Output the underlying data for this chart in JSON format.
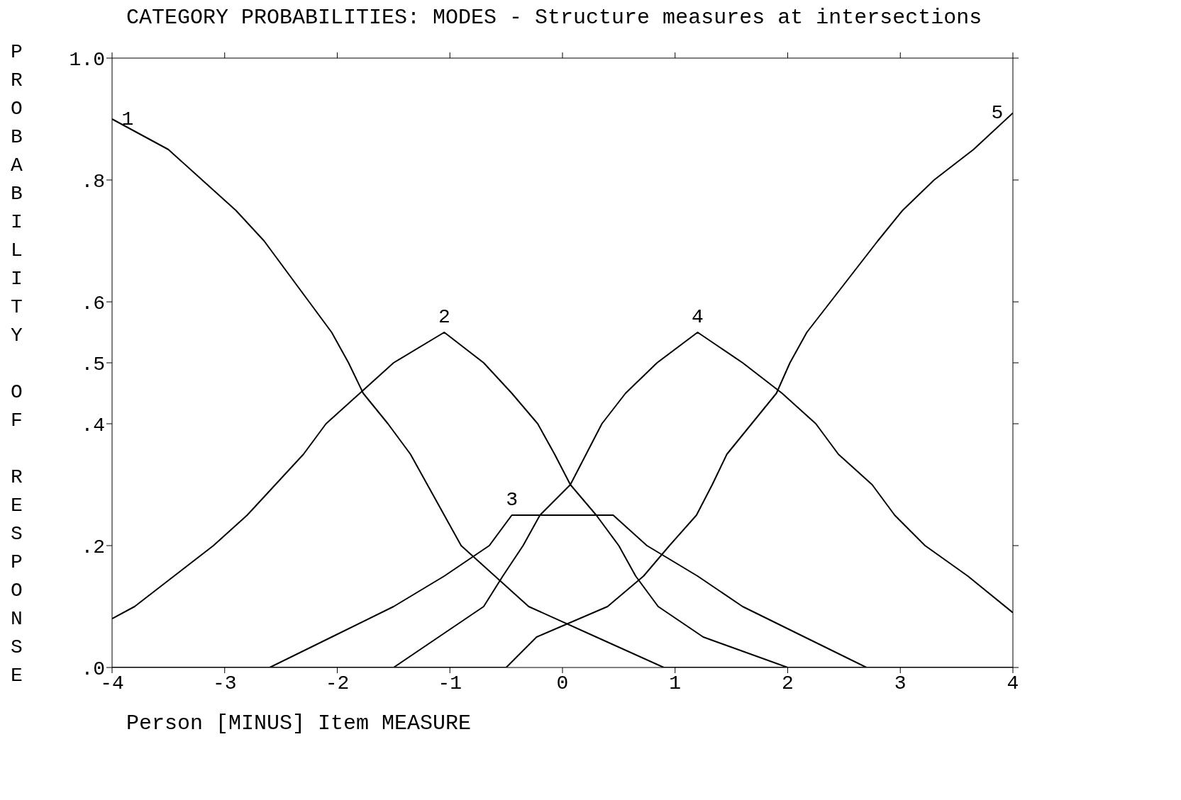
{
  "chart_data": {
    "type": "line",
    "title": "CATEGORY PROBABILITIES: MODES - Structure measures at intersections",
    "xlabel": "Person [MINUS] Item MEASURE",
    "ylabel": "PROBABILITY OF RESPONSE",
    "xlim": [
      -4,
      4
    ],
    "xticks": [
      -4,
      -3,
      -2,
      -1,
      0,
      1,
      2,
      3,
      4
    ],
    "ylim": [
      0,
      1
    ],
    "yticks": [
      {
        "value": 0,
        "label": ".0"
      },
      {
        "value": 0.2,
        "label": ".2"
      },
      {
        "value": 0.4,
        "label": ".4"
      },
      {
        "value": 0.5,
        "label": ".5"
      },
      {
        "value": 0.6,
        "label": ".6"
      },
      {
        "value": 0.8,
        "label": ".8"
      },
      {
        "value": 1,
        "label": "1.0"
      }
    ],
    "grid": false,
    "legend": false,
    "series": [
      {
        "name": "1",
        "color": "#000000",
        "x": [
          -4,
          -3.5,
          -3.2,
          -2.9,
          -2.65,
          -2.45,
          -2.25,
          -2.05,
          -1.9,
          -1.77,
          -1.55,
          -1.35,
          -1.2,
          -1.05,
          -0.9,
          -0.6,
          -0.3,
          0.3,
          0.9,
          4
        ],
        "values": [
          0.9,
          0.85,
          0.8,
          0.75,
          0.7,
          0.65,
          0.6,
          0.55,
          0.5,
          0.45,
          0.4,
          0.35,
          0.3,
          0.25,
          0.2,
          0.15,
          0.1,
          0.05,
          0,
          0
        ]
      },
      {
        "name": "2",
        "color": "#000000",
        "x": [
          -4,
          -3.8,
          -3.45,
          -3.1,
          -2.8,
          -2.55,
          -2.3,
          -2.1,
          -1.8,
          -1.5,
          -1.05,
          -0.7,
          -0.45,
          -0.22,
          -0.07,
          0.07,
          0.3,
          0.5,
          0.65,
          0.85,
          1.25,
          2,
          4
        ],
        "values": [
          0.08,
          0.1,
          0.15,
          0.2,
          0.25,
          0.3,
          0.35,
          0.4,
          0.45,
          0.5,
          0.55,
          0.5,
          0.45,
          0.4,
          0.35,
          0.3,
          0.25,
          0.2,
          0.15,
          0.1,
          0.05,
          0,
          0
        ]
      },
      {
        "name": "3",
        "color": "#000000",
        "x": [
          -4,
          -2.6,
          -2.05,
          -1.5,
          -1.05,
          -0.65,
          -0.45,
          0,
          0.45,
          0.75,
          1.2,
          1.6,
          2.15,
          2.7,
          4
        ],
        "values": [
          0,
          0,
          0.05,
          0.1,
          0.15,
          0.2,
          0.25,
          0.25,
          0.25,
          0.2,
          0.15,
          0.1,
          0.05,
          0,
          0
        ]
      },
      {
        "name": "4",
        "color": "#000000",
        "x": [
          -4,
          -1.5,
          -1.1,
          -0.7,
          -0.53,
          -0.35,
          -0.2,
          0.07,
          0.21,
          0.35,
          0.56,
          0.84,
          1.2,
          1.6,
          1.95,
          2.25,
          2.45,
          2.75,
          2.95,
          3.22,
          3.6,
          4
        ],
        "values": [
          0,
          0,
          0.05,
          0.1,
          0.15,
          0.2,
          0.25,
          0.3,
          0.35,
          0.4,
          0.45,
          0.5,
          0.55,
          0.5,
          0.45,
          0.4,
          0.35,
          0.3,
          0.25,
          0.2,
          0.15,
          0.09
        ]
      },
      {
        "name": "5",
        "color": "#000000",
        "x": [
          -4,
          -0.5,
          -0.23,
          0.4,
          0.72,
          0.95,
          1.19,
          1.33,
          1.46,
          1.68,
          1.9,
          2.02,
          2.17,
          2.38,
          2.59,
          2.8,
          3.02,
          3.3,
          3.65,
          4
        ],
        "values": [
          0,
          0,
          0.05,
          0.1,
          0.15,
          0.2,
          0.25,
          0.3,
          0.35,
          0.4,
          0.45,
          0.5,
          0.55,
          0.6,
          0.65,
          0.7,
          0.75,
          0.8,
          0.85,
          0.91
        ]
      }
    ]
  }
}
